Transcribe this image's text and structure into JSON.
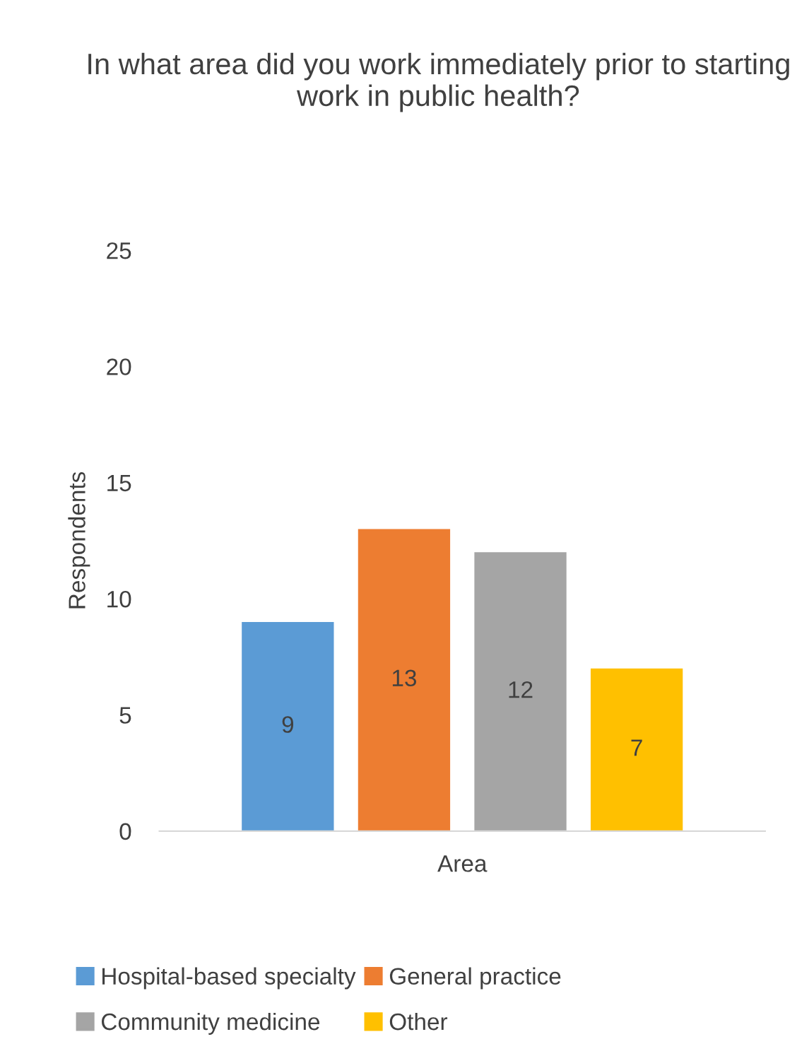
{
  "chart_data": {
    "type": "bar",
    "title": "In what area did you work immediately prior to starting work in public health?",
    "xlabel": null,
    "ylabel": "Respondents",
    "categories": [
      "Area"
    ],
    "series": [
      {
        "name": "Hospital-based specialty",
        "color": "#5b9bd5",
        "values": [
          9
        ]
      },
      {
        "name": "General practice",
        "color": "#ed7d31",
        "values": [
          13
        ]
      },
      {
        "name": "Community medicine",
        "color": "#a5a5a5",
        "values": [
          12
        ]
      },
      {
        "name": "Other",
        "color": "#ffc000",
        "values": [
          7
        ]
      }
    ],
    "ylim": [
      0,
      25
    ],
    "yticks": [
      0,
      5,
      10,
      15,
      20,
      25
    ],
    "grid": false,
    "legend": "bottom",
    "data_labels": true
  }
}
